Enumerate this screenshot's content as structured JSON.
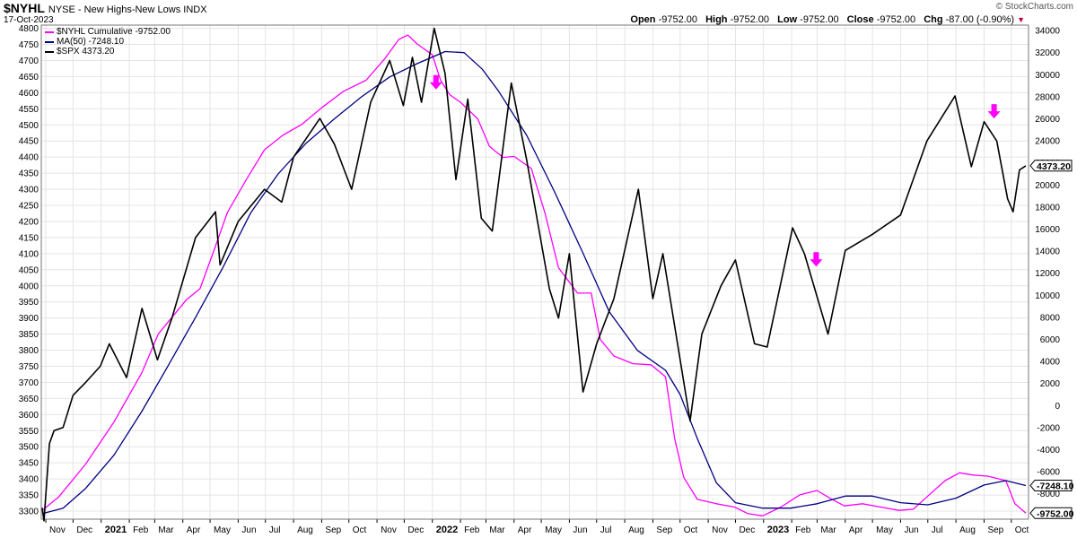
{
  "header": {
    "symbol": "$NYHL",
    "description": "NYSE - New Highs-New Lows",
    "exchange": "INDX",
    "date": "17-Oct-2023",
    "ohlc": {
      "open_label": "Open",
      "open": "-9752.00",
      "high_label": "High",
      "high": "-9752.00",
      "low_label": "Low",
      "low": "-9752.00",
      "close_label": "Close",
      "close": "-9752.00",
      "chg_label": "Chg",
      "chg": "-87.00 (-0.90%)"
    },
    "watermark": "© StockCharts.com"
  },
  "legend": [
    {
      "label": "$NYHL Cumulative -9752.00",
      "color": "#ff00ff"
    },
    {
      "label": "MA(50) -7248.10",
      "color": "#000080"
    },
    {
      "label": "$SPX 4373.20",
      "color": "#000000"
    }
  ],
  "colors": {
    "cumulative": "#ff00ff",
    "ma": "#000080",
    "spx": "#000000",
    "arrow": "#ff00ff",
    "grid": "#e4e4e4"
  },
  "chart_data": {
    "type": "line",
    "x_labels": [
      "Nov",
      "Dec",
      "2021",
      "Feb",
      "Mar",
      "Apr",
      "May",
      "Jun",
      "Jul",
      "Aug",
      "Sep",
      "Oct",
      "Nov",
      "Dec",
      "2022",
      "Feb",
      "Mar",
      "Apr",
      "May",
      "Jun",
      "Jul",
      "Aug",
      "Sep",
      "Oct",
      "Nov",
      "Dec",
      "2023",
      "Feb",
      "Mar",
      "Apr",
      "May",
      "Jun",
      "Jul",
      "Aug",
      "Sep",
      "Oct"
    ],
    "x_range": [
      "2020-10-27",
      "2023-10-20"
    ],
    "left_axis": {
      "min": 3275,
      "max": 4810,
      "ticks": [
        3300,
        3350,
        3400,
        3450,
        3500,
        3550,
        3600,
        3650,
        3700,
        3750,
        3800,
        3850,
        3900,
        3950,
        4000,
        4050,
        4100,
        4150,
        4200,
        4250,
        4300,
        4350,
        4400,
        4450,
        4500,
        4550,
        4600,
        4650,
        4700,
        4750,
        4800
      ]
    },
    "right_axis": {
      "min": -10300,
      "max": 34500,
      "ticks": [
        -8000,
        -6000,
        -4000,
        -2000,
        0,
        2000,
        4000,
        6000,
        8000,
        10000,
        12000,
        14000,
        16000,
        18000,
        20000,
        22000,
        24000,
        26000,
        28000,
        30000,
        32000,
        34000
      ]
    },
    "grid": true,
    "legend_position": "top-left",
    "last_value_labels": [
      {
        "value": 4373.2,
        "text": "4373.20",
        "axis": "left"
      },
      {
        "value": -7248.1,
        "text": "-7248.10",
        "axis": "right"
      },
      {
        "value": -9752,
        "text": "-9752.00",
        "axis": "right"
      }
    ],
    "series": [
      {
        "name": "$NYHL Cumulative -9752.00",
        "axis": "right",
        "color": "#ff00ff",
        "points": [
          [
            "2020-10-28",
            -9500
          ],
          [
            "2020-11-15",
            -8300
          ],
          [
            "2020-12-15",
            -5300
          ],
          [
            "2021-01-15",
            -1500
          ],
          [
            "2021-02-15",
            3000
          ],
          [
            "2021-03-05",
            6500
          ],
          [
            "2021-03-25",
            8500
          ],
          [
            "2021-04-05",
            9600
          ],
          [
            "2021-04-20",
            10600
          ],
          [
            "2021-05-05",
            14000
          ],
          [
            "2021-05-20",
            17500
          ],
          [
            "2021-06-10",
            20500
          ],
          [
            "2021-06-30",
            23200
          ],
          [
            "2021-07-20",
            24500
          ],
          [
            "2021-08-10",
            25500
          ],
          [
            "2021-09-01",
            27000
          ],
          [
            "2021-09-25",
            28500
          ],
          [
            "2021-10-20",
            29500
          ],
          [
            "2021-11-10",
            31500
          ],
          [
            "2021-11-25",
            33200
          ],
          [
            "2021-12-05",
            33600
          ],
          [
            "2021-12-15",
            32800
          ],
          [
            "2022-01-01",
            31800
          ],
          [
            "2022-01-10",
            29500
          ],
          [
            "2022-01-20",
            28200
          ],
          [
            "2022-02-01",
            27500
          ],
          [
            "2022-02-20",
            26000
          ],
          [
            "2022-03-05",
            23500
          ],
          [
            "2022-03-20",
            22500
          ],
          [
            "2022-04-01",
            22600
          ],
          [
            "2022-04-20",
            21500
          ],
          [
            "2022-05-05",
            17500
          ],
          [
            "2022-05-20",
            12500
          ],
          [
            "2022-06-10",
            10200
          ],
          [
            "2022-06-25",
            10200
          ],
          [
            "2022-07-05",
            6000
          ],
          [
            "2022-07-20",
            4500
          ],
          [
            "2022-08-10",
            3800
          ],
          [
            "2022-08-30",
            3700
          ],
          [
            "2022-09-15",
            2600
          ],
          [
            "2022-09-25",
            -3000
          ],
          [
            "2022-10-05",
            -6500
          ],
          [
            "2022-10-20",
            -8500
          ],
          [
            "2022-11-10",
            -8900
          ],
          [
            "2022-11-30",
            -9200
          ],
          [
            "2022-12-15",
            -9800
          ],
          [
            "2022-12-31",
            -10000
          ],
          [
            "2023-01-20",
            -9200
          ],
          [
            "2023-02-10",
            -8100
          ],
          [
            "2023-03-01",
            -7700
          ],
          [
            "2023-03-15",
            -8400
          ],
          [
            "2023-03-31",
            -9100
          ],
          [
            "2023-04-20",
            -8900
          ],
          [
            "2023-05-10",
            -9200
          ],
          [
            "2023-05-30",
            -9500
          ],
          [
            "2023-06-15",
            -9400
          ],
          [
            "2023-07-01",
            -8200
          ],
          [
            "2023-07-20",
            -6800
          ],
          [
            "2023-08-05",
            -6100
          ],
          [
            "2023-08-20",
            -6300
          ],
          [
            "2023-09-05",
            -6400
          ],
          [
            "2023-09-25",
            -6800
          ],
          [
            "2023-10-05",
            -8900
          ],
          [
            "2023-10-17",
            -9752
          ]
        ]
      },
      {
        "name": "MA(50) -7248.10",
        "axis": "right",
        "color": "#000080",
        "points": [
          [
            "2020-10-28",
            -9800
          ],
          [
            "2020-11-20",
            -9300
          ],
          [
            "2020-12-15",
            -7500
          ],
          [
            "2021-01-15",
            -4500
          ],
          [
            "2021-02-15",
            -500
          ],
          [
            "2021-03-15",
            3500
          ],
          [
            "2021-04-15",
            8000
          ],
          [
            "2021-05-15",
            12500
          ],
          [
            "2021-06-15",
            17500
          ],
          [
            "2021-07-15",
            21000
          ],
          [
            "2021-08-15",
            23800
          ],
          [
            "2021-09-15",
            26000
          ],
          [
            "2021-10-15",
            28000
          ],
          [
            "2021-11-15",
            29800
          ],
          [
            "2021-12-15",
            31000
          ],
          [
            "2022-01-15",
            32100
          ],
          [
            "2022-02-05",
            32000
          ],
          [
            "2022-02-25",
            30500
          ],
          [
            "2022-03-15",
            28500
          ],
          [
            "2022-04-15",
            24500
          ],
          [
            "2022-05-15",
            19500
          ],
          [
            "2022-06-15",
            14000
          ],
          [
            "2022-07-15",
            8500
          ],
          [
            "2022-08-15",
            5000
          ],
          [
            "2022-09-15",
            3200
          ],
          [
            "2022-10-01",
            1000
          ],
          [
            "2022-10-20",
            -3000
          ],
          [
            "2022-11-10",
            -7000
          ],
          [
            "2022-12-01",
            -8800
          ],
          [
            "2022-12-31",
            -9300
          ],
          [
            "2023-01-31",
            -9300
          ],
          [
            "2023-03-01",
            -8900
          ],
          [
            "2023-04-01",
            -8200
          ],
          [
            "2023-05-01",
            -8200
          ],
          [
            "2023-06-01",
            -8800
          ],
          [
            "2023-07-01",
            -9000
          ],
          [
            "2023-08-01",
            -8400
          ],
          [
            "2023-09-01",
            -7200
          ],
          [
            "2023-09-25",
            -6800
          ],
          [
            "2023-10-17",
            -7248
          ]
        ]
      },
      {
        "name": "$SPX 4373.20",
        "axis": "left",
        "color": "#000000",
        "points": [
          [
            "2020-10-28",
            3310
          ],
          [
            "2020-10-30",
            3270
          ],
          [
            "2020-11-05",
            3510
          ],
          [
            "2020-11-10",
            3550
          ],
          [
            "2020-11-20",
            3560
          ],
          [
            "2020-12-01",
            3660
          ],
          [
            "2020-12-15",
            3700
          ],
          [
            "2020-12-31",
            3750
          ],
          [
            "2021-01-10",
            3820
          ],
          [
            "2021-01-29",
            3715
          ],
          [
            "2021-02-15",
            3930
          ],
          [
            "2021-03-04",
            3770
          ],
          [
            "2021-03-20",
            3900
          ],
          [
            "2021-04-15",
            4150
          ],
          [
            "2021-05-07",
            4230
          ],
          [
            "2021-05-12",
            4065
          ],
          [
            "2021-06-01",
            4200
          ],
          [
            "2021-06-30",
            4300
          ],
          [
            "2021-07-19",
            4260
          ],
          [
            "2021-08-01",
            4400
          ],
          [
            "2021-08-30",
            4520
          ],
          [
            "2021-09-15",
            4440
          ],
          [
            "2021-10-04",
            4300
          ],
          [
            "2021-10-25",
            4570
          ],
          [
            "2021-11-15",
            4700
          ],
          [
            "2021-11-30",
            4560
          ],
          [
            "2021-12-10",
            4710
          ],
          [
            "2021-12-20",
            4570
          ],
          [
            "2022-01-03",
            4800
          ],
          [
            "2022-01-15",
            4660
          ],
          [
            "2022-01-27",
            4330
          ],
          [
            "2022-02-09",
            4580
          ],
          [
            "2022-02-24",
            4210
          ],
          [
            "2022-03-08",
            4170
          ],
          [
            "2022-03-29",
            4630
          ],
          [
            "2022-04-15",
            4390
          ],
          [
            "2022-05-10",
            3990
          ],
          [
            "2022-05-20",
            3900
          ],
          [
            "2022-06-01",
            4100
          ],
          [
            "2022-06-16",
            3670
          ],
          [
            "2022-07-01",
            3820
          ],
          [
            "2022-07-20",
            3960
          ],
          [
            "2022-08-16",
            4300
          ],
          [
            "2022-09-01",
            3960
          ],
          [
            "2022-09-12",
            4100
          ],
          [
            "2022-10-12",
            3580
          ],
          [
            "2022-10-25",
            3850
          ],
          [
            "2022-11-15",
            4000
          ],
          [
            "2022-12-01",
            4080
          ],
          [
            "2022-12-22",
            3820
          ],
          [
            "2023-01-05",
            3810
          ],
          [
            "2023-02-02",
            4180
          ],
          [
            "2023-02-15",
            4100
          ],
          [
            "2023-03-13",
            3850
          ],
          [
            "2023-04-01",
            4110
          ],
          [
            "2023-05-01",
            4160
          ],
          [
            "2023-06-01",
            4220
          ],
          [
            "2023-06-30",
            4450
          ],
          [
            "2023-07-31",
            4590
          ],
          [
            "2023-08-18",
            4370
          ],
          [
            "2023-09-01",
            4510
          ],
          [
            "2023-09-15",
            4450
          ],
          [
            "2023-09-27",
            4270
          ],
          [
            "2023-10-03",
            4230
          ],
          [
            "2023-10-10",
            4360
          ],
          [
            "2023-10-17",
            4373
          ]
        ]
      }
    ],
    "annotations": [
      {
        "type": "arrow-down",
        "date": "2022-01-05",
        "value": 4610,
        "axis": "left",
        "color": "#ff00ff"
      },
      {
        "type": "arrow-down",
        "date": "2023-02-28",
        "value": 4060,
        "axis": "left",
        "color": "#ff00ff"
      },
      {
        "type": "arrow-down",
        "date": "2023-09-12",
        "value": 4520,
        "axis": "left",
        "color": "#ff00ff"
      }
    ]
  }
}
